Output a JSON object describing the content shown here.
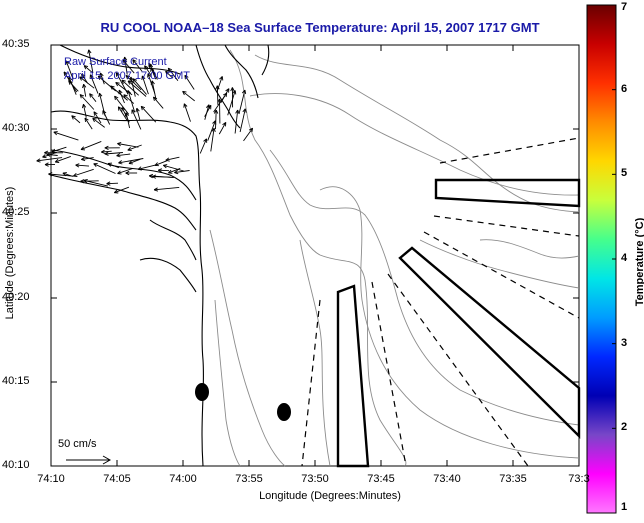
{
  "title": "RU COOL  NOAA–18  Sea Surface Temperature:  April 15, 2007 1717 GMT",
  "overlay_notes": {
    "line1": "Raw Surface Current",
    "line2": "April 15, 2007 17:00 GMT"
  },
  "axes": {
    "xlabel": "Longitude (Degrees:Minutes)",
    "ylabel": "Latitude (Degrees:Minutes)",
    "x_ticks": [
      "74:10",
      "74:05",
      "74:00",
      "73:55",
      "73:50",
      "73:45",
      "73:40",
      "73:35",
      "73:3"
    ],
    "y_ticks": [
      "40:35",
      "40:30",
      "40:25",
      "40:20",
      "40:15",
      "40:10"
    ]
  },
  "colorbar": {
    "label": "Temperature (°C)",
    "ticks": [
      "7",
      "6",
      "5",
      "4",
      "3",
      "2",
      "1"
    ],
    "colors": [
      "#6a0000",
      "#c80000",
      "#ff3000",
      "#ff8c00",
      "#ffd700",
      "#c8ff3c",
      "#46ff8c",
      "#00e6e6",
      "#009cff",
      "#0028ff",
      "#0000b4",
      "#7846c8",
      "#ff00ff",
      "#ff78ff"
    ]
  },
  "scale_label": "50 cm/s",
  "colors": {
    "title_text": "#1a1aa8",
    "coast": "#000000",
    "contour": "#8c8c8c"
  },
  "map_features": {
    "vector_field": "raw surface current arrows near harbor entrance",
    "markers": [
      "buoy-marker-1",
      "buoy-marker-2"
    ],
    "shipping_lanes": [
      "east-lane",
      "southeast-lane",
      "south-lane"
    ]
  }
}
